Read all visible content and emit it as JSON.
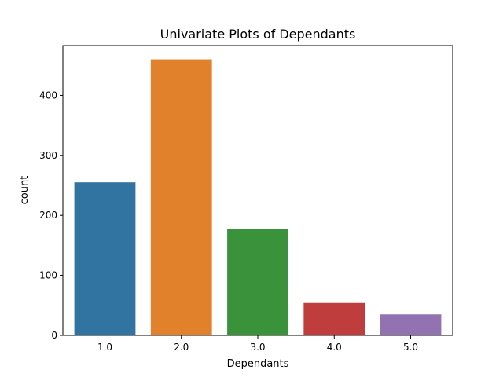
{
  "chart_data": {
    "type": "bar",
    "title": "Univariate Plots of Dependants",
    "xlabel": "Dependants",
    "ylabel": "count",
    "categories": [
      "1.0",
      "2.0",
      "3.0",
      "4.0",
      "5.0"
    ],
    "values": [
      255,
      460,
      178,
      54,
      35
    ],
    "colors": [
      "#3274a1",
      "#e1812c",
      "#3a923a",
      "#c03d3e",
      "#9372b2"
    ],
    "ylim": [
      0,
      483
    ],
    "yticks": [
      0,
      100,
      200,
      300,
      400
    ],
    "grid": false,
    "legend": "none"
  }
}
